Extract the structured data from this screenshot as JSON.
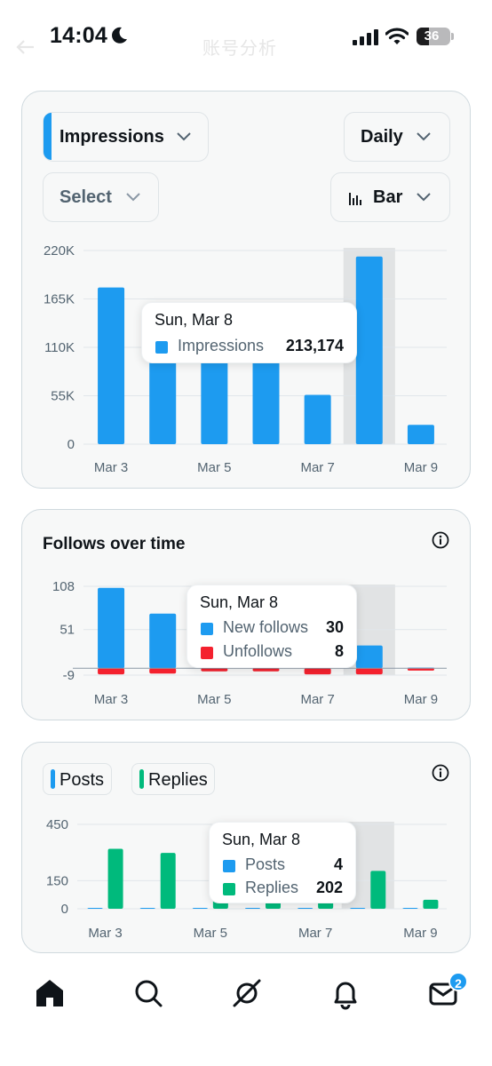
{
  "status_bar": {
    "time": "14:04",
    "battery": "36",
    "battery_level": 0.36
  },
  "header": {
    "title": "账号分析"
  },
  "impressions_card": {
    "metric_dropdown": "Impressions",
    "period_dropdown": "Daily",
    "select_dropdown": "Select",
    "chart_type_dropdown": "Bar",
    "icons": {
      "chart_type": "bar-chart-icon",
      "chevron": "chevron-down-icon"
    },
    "tooltip": {
      "title": "Sun, Mar 8",
      "series": "Impressions",
      "value": "213,174"
    }
  },
  "follows_card": {
    "title": "Follows over time",
    "info_icon": "info-icon",
    "tooltip": {
      "title": "Sun, Mar 8",
      "rows": [
        {
          "name": "New follows",
          "value": "30"
        },
        {
          "name": "Unfollows",
          "value": "8"
        }
      ]
    }
  },
  "posts_card": {
    "legend": [
      "Posts",
      "Replies"
    ],
    "info_icon": "info-icon",
    "tooltip": {
      "title": "Sun, Mar 8",
      "rows": [
        {
          "name": "Posts",
          "value": "4"
        },
        {
          "name": "Replies",
          "value": "202"
        }
      ]
    }
  },
  "bottom_nav": {
    "items": [
      "home-icon",
      "search-icon",
      "grok-icon",
      "notifications-icon",
      "messages-icon"
    ],
    "messages_badge": "2"
  },
  "colors": {
    "blue": "#1d9bf0",
    "red": "#f4212e",
    "green": "#00ba7c",
    "highlight": "#e1e3e4"
  },
  "chart_data": [
    {
      "type": "bar",
      "categories": [
        "Mar 3",
        "Mar 4",
        "Mar 5",
        "Mar 6",
        "Mar 7",
        "Mar 8",
        "Mar 9"
      ],
      "x_tick_labels": [
        "Mar 3",
        "Mar 5",
        "Mar 7",
        "Mar 9"
      ],
      "y_tick_labels": [
        "220K",
        "165K",
        "110K",
        "55K",
        "0"
      ],
      "ylim": [
        0,
        220000
      ],
      "highlighted_category": "Mar 8",
      "series": [
        {
          "name": "Impressions",
          "color": "#1d9bf0",
          "values": [
            178000,
            161000,
            140000,
            128000,
            56000,
            213174,
            22000
          ]
        }
      ]
    },
    {
      "type": "bar",
      "categories": [
        "Mar 3",
        "Mar 4",
        "Mar 5",
        "Mar 6",
        "Mar 7",
        "Mar 8",
        "Mar 9"
      ],
      "x_tick_labels": [
        "Mar 3",
        "Mar 5",
        "Mar 7",
        "Mar 9"
      ],
      "y_tick_labels": [
        "108",
        "51",
        "-9"
      ],
      "ylim": [
        -9,
        108
      ],
      "highlighted_category": "Mar 8",
      "series": [
        {
          "name": "New follows",
          "color": "#1d9bf0",
          "values": [
            106,
            72,
            55,
            40,
            20,
            30,
            1
          ]
        },
        {
          "name": "Unfollows",
          "color": "#f4212e",
          "values": [
            -8,
            -7,
            -4,
            -4,
            -8,
            -8,
            -3
          ]
        }
      ]
    },
    {
      "type": "bar",
      "categories": [
        "Mar 3",
        "Mar 4",
        "Mar 5",
        "Mar 6",
        "Mar 7",
        "Mar 8",
        "Mar 9"
      ],
      "x_tick_labels": [
        "Mar 3",
        "Mar 5",
        "Mar 7",
        "Mar 9"
      ],
      "y_tick_labels": [
        "450",
        "150",
        "0"
      ],
      "ylim": [
        0,
        450
      ],
      "highlighted_category": "Mar 8",
      "series": [
        {
          "name": "Posts",
          "color": "#1d9bf0",
          "values": [
            3,
            3,
            4,
            4,
            4,
            4,
            1
          ]
        },
        {
          "name": "Replies",
          "color": "#00ba7c",
          "values": [
            320,
            298,
            160,
            120,
            100,
            202,
            48
          ]
        }
      ]
    }
  ]
}
